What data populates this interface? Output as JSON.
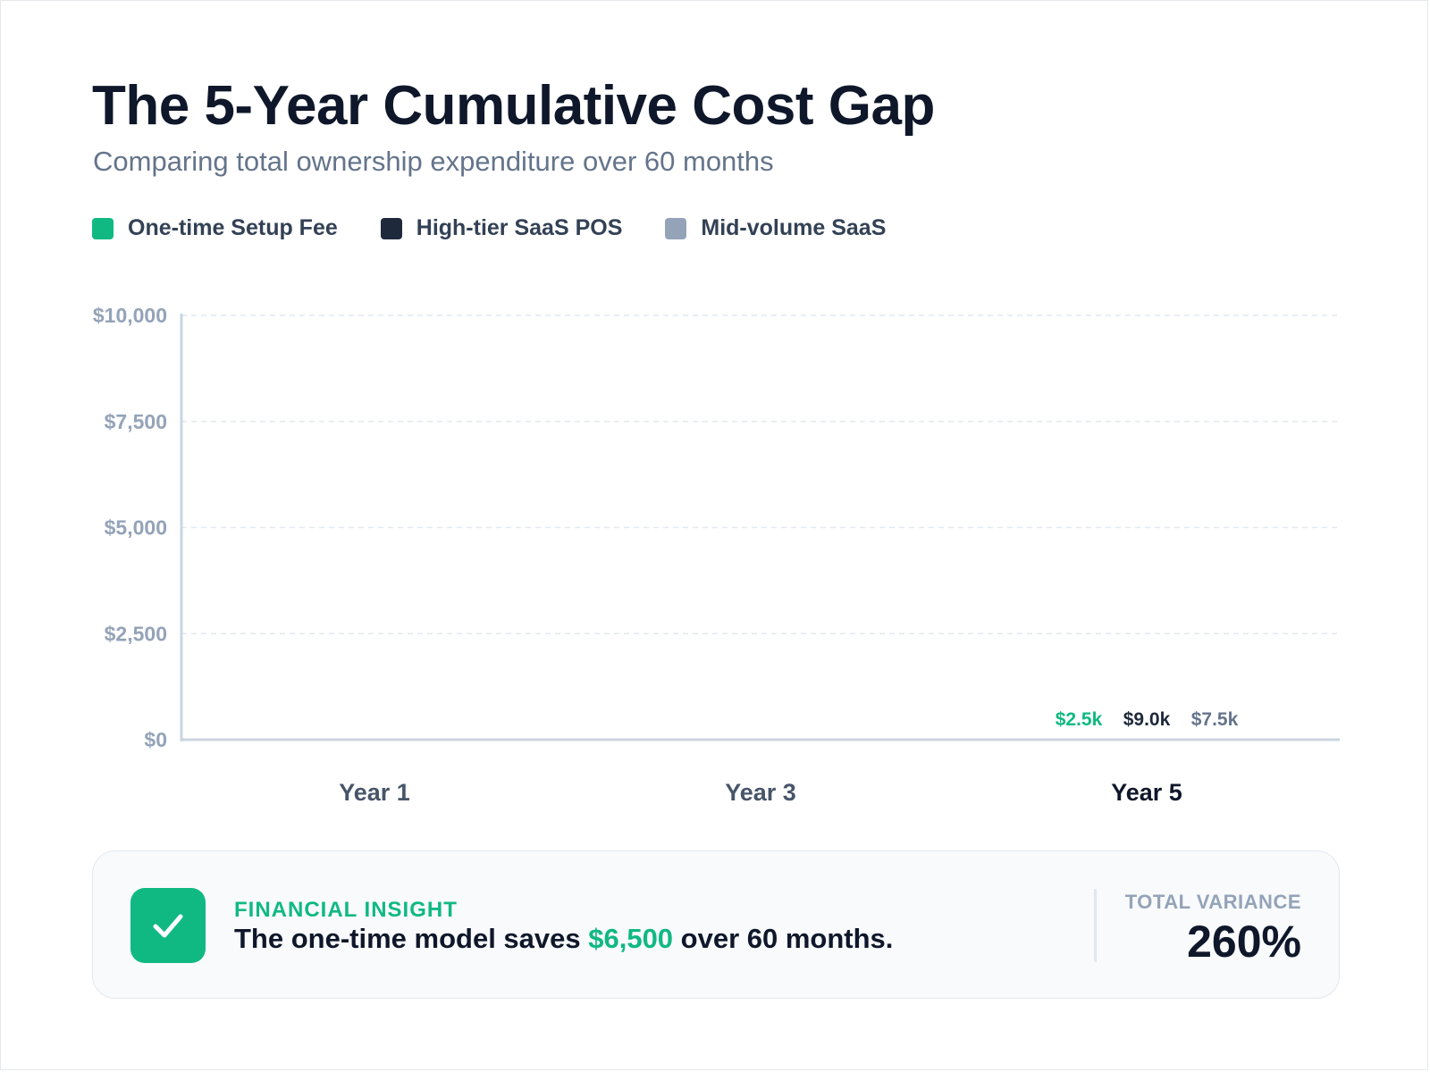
{
  "header": {
    "title": "The 5-Year Cumulative Cost Gap",
    "subtitle": "Comparing total ownership expenditure over 60 months"
  },
  "chart_data": {
    "type": "bar",
    "categories": [
      "Year 1",
      "Year 3",
      "Year 5"
    ],
    "highlighted_category": "Year 5",
    "series": [
      {
        "name": "One-time Setup Fee",
        "color": "#10b981",
        "values": [
          null,
          null,
          2500
        ],
        "labels": [
          "",
          "",
          "$2.5k"
        ]
      },
      {
        "name": "High-tier SaaS POS",
        "color": "#1e293b",
        "values": [
          null,
          null,
          9000
        ],
        "labels": [
          "",
          "",
          "$9.0k"
        ]
      },
      {
        "name": "Mid-volume SaaS",
        "color": "#94a3b8",
        "values": [
          null,
          null,
          7500
        ],
        "labels": [
          "",
          "",
          "$7.5k"
        ]
      }
    ],
    "ylim": [
      0,
      10000
    ],
    "yticks": [
      0,
      2500,
      5000,
      7500,
      10000
    ],
    "ytick_labels": [
      "$0",
      "$2,500",
      "$5,000",
      "$7,500",
      "$10,000"
    ],
    "grid": true,
    "legend_position": "top-left"
  },
  "insight": {
    "eyebrow": "FINANCIAL INSIGHT",
    "text_before": "The one-time model saves ",
    "amount": "$6,500",
    "text_after": " over 60 months.",
    "variance_label": "TOTAL VARIANCE",
    "variance_value": "260%"
  },
  "colors": {
    "accent": "#10b981",
    "dark": "#0f172a",
    "muted": "#94a3b8"
  },
  "icons": {
    "insight": "check-icon"
  }
}
